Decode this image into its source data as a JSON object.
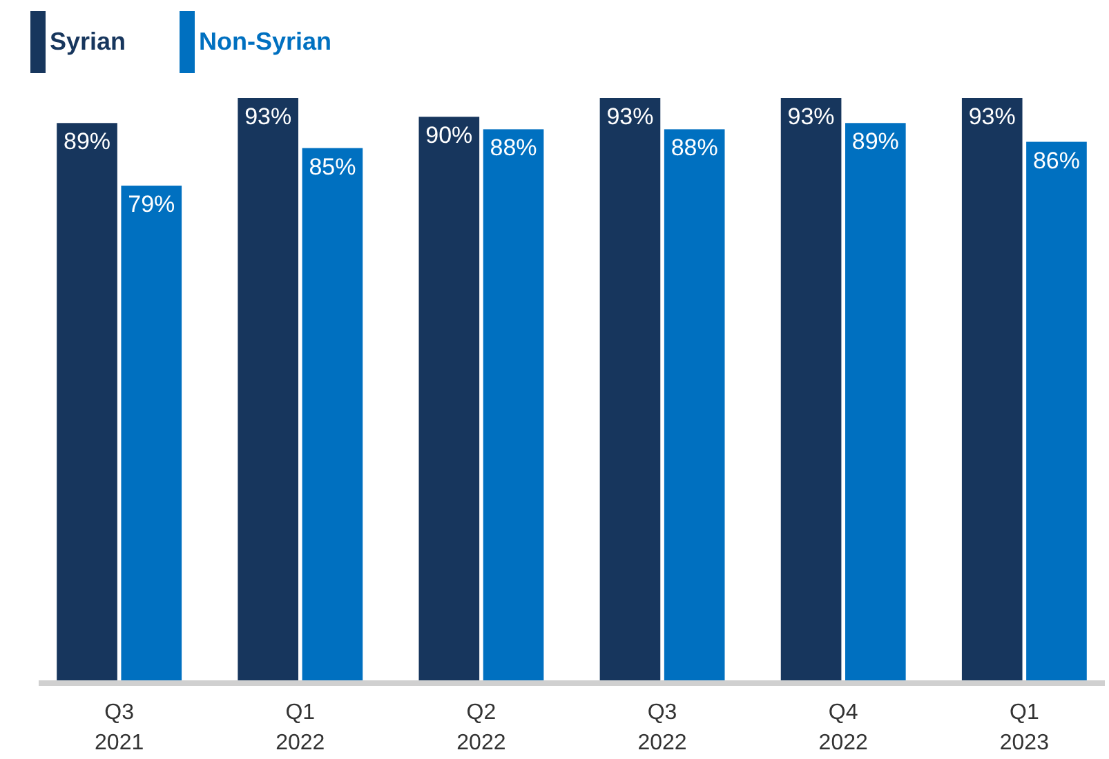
{
  "chart_data": {
    "type": "bar",
    "categories": [
      "Q3 2021",
      "Q1 2022",
      "Q2 2022",
      "Q3 2022",
      "Q4 2022",
      "Q1 2023"
    ],
    "series": [
      {
        "name": "Syrian",
        "color": "#17365d",
        "values": [
          89,
          93,
          90,
          93,
          93,
          93
        ],
        "value_labels": [
          "89%",
          "93%",
          "90%",
          "93%",
          "93%",
          "93%"
        ]
      },
      {
        "name": "Non-Syrian",
        "color": "#0070c0",
        "values": [
          79,
          85,
          88,
          88,
          89,
          86
        ],
        "value_labels": [
          "79%",
          "85%",
          "88%",
          "88%",
          "89%",
          "86%"
        ]
      }
    ],
    "legend": "top left"
  }
}
